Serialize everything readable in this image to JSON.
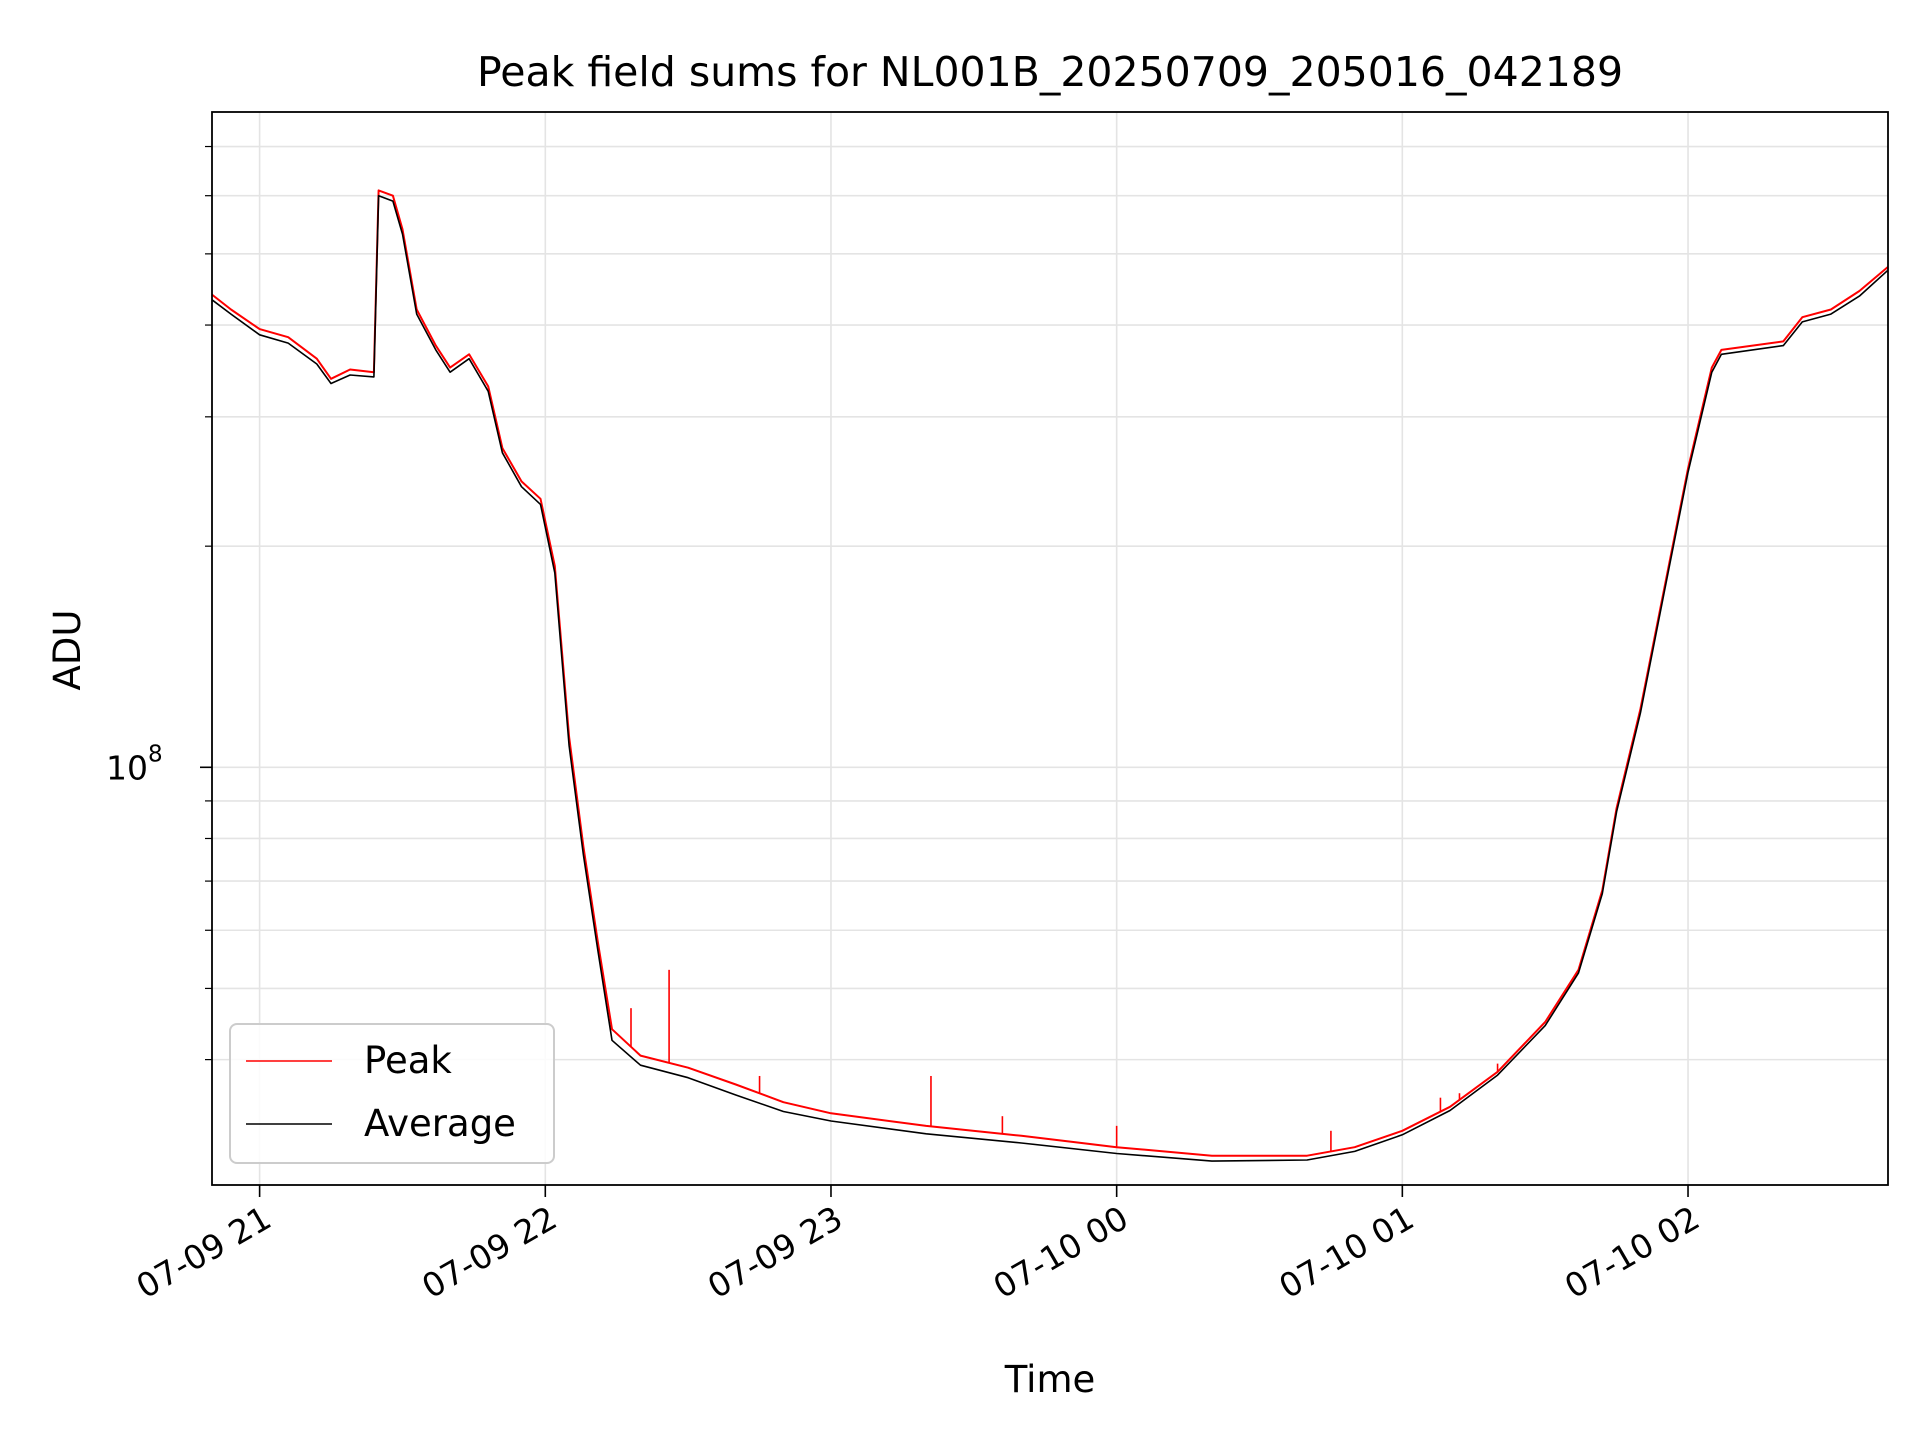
{
  "chart_data": {
    "type": "line",
    "title": "Peak field sums for NL001B_20250709_205016_042189",
    "xlabel": "Time",
    "ylabel": "ADU",
    "y_scale": "log",
    "grid": true,
    "legend_position": "lower-left",
    "xlim": [
      "2025-07-09 20:50",
      "2025-07-10 02:42"
    ],
    "ylim": [
      27000000,
      780000000
    ],
    "x_ticks": [
      {
        "t": "2025-07-09 21:00",
        "label": "07-09 21"
      },
      {
        "t": "2025-07-09 22:00",
        "label": "07-09 22"
      },
      {
        "t": "2025-07-09 23:00",
        "label": "07-09 23"
      },
      {
        "t": "2025-07-10 00:00",
        "label": "07-10 00"
      },
      {
        "t": "2025-07-10 01:00",
        "label": "07-10 01"
      },
      {
        "t": "2025-07-10 02:00",
        "label": "07-10 02"
      }
    ],
    "y_major_ticks": [
      {
        "value": 100000000,
        "base": "10",
        "exp": "8"
      }
    ],
    "y_minor_ticks": [
      40000000,
      50000000,
      60000000,
      70000000,
      80000000,
      90000000,
      200000000,
      300000000,
      400000000,
      500000000,
      600000000,
      700000000
    ],
    "series": [
      {
        "name": "Peak",
        "color": "#ff0000",
        "points": [
          [
            "2025-07-09 20:50",
            440000000
          ],
          [
            "2025-07-09 20:54",
            420000000
          ],
          [
            "2025-07-09 21:00",
            395000000
          ],
          [
            "2025-07-09 21:06",
            385000000
          ],
          [
            "2025-07-09 21:12",
            360000000
          ],
          [
            "2025-07-09 21:15",
            338000000
          ],
          [
            "2025-07-09 21:19",
            348000000
          ],
          [
            "2025-07-09 21:24",
            345000000
          ],
          [
            "2025-07-09 21:25",
            610000000
          ],
          [
            "2025-07-09 21:28",
            600000000
          ],
          [
            "2025-07-09 21:30",
            540000000
          ],
          [
            "2025-07-09 21:33",
            420000000
          ],
          [
            "2025-07-09 21:37",
            375000000
          ],
          [
            "2025-07-09 21:40",
            350000000
          ],
          [
            "2025-07-09 21:44",
            365000000
          ],
          [
            "2025-07-09 21:48",
            330000000
          ],
          [
            "2025-07-09 21:51",
            272000000
          ],
          [
            "2025-07-09 21:55",
            245000000
          ],
          [
            "2025-07-09 21:59",
            232000000
          ],
          [
            "2025-07-09 22:02",
            188000000
          ],
          [
            "2025-07-09 22:05",
            110000000
          ],
          [
            "2025-07-09 22:08",
            78000000
          ],
          [
            "2025-07-09 22:11",
            58000000
          ],
          [
            "2025-07-09 22:14",
            44000000
          ],
          [
            "2025-07-09 22:20",
            40500000
          ],
          [
            "2025-07-09 22:30",
            39000000
          ],
          [
            "2025-07-09 22:40",
            37000000
          ],
          [
            "2025-07-09 22:50",
            35000000
          ],
          [
            "2025-07-09 23:00",
            33800000
          ],
          [
            "2025-07-09 23:20",
            32500000
          ],
          [
            "2025-07-09 23:40",
            31500000
          ],
          [
            "2025-07-10 00:00",
            30400000
          ],
          [
            "2025-07-10 00:20",
            29600000
          ],
          [
            "2025-07-10 00:40",
            29600000
          ],
          [
            "2025-07-10 00:50",
            30400000
          ],
          [
            "2025-07-10 01:00",
            32000000
          ],
          [
            "2025-07-10 01:10",
            34500000
          ],
          [
            "2025-07-10 01:20",
            38500000
          ],
          [
            "2025-07-10 01:30",
            45000000
          ],
          [
            "2025-07-10 01:37",
            53000000
          ],
          [
            "2025-07-10 01:42",
            68000000
          ],
          [
            "2025-07-10 01:45",
            88000000
          ],
          [
            "2025-07-10 01:50",
            120000000
          ],
          [
            "2025-07-10 01:55",
            175000000
          ],
          [
            "2025-07-10 02:00",
            255000000
          ],
          [
            "2025-07-10 02:05",
            350000000
          ],
          [
            "2025-07-10 02:07",
            370000000
          ],
          [
            "2025-07-10 02:20",
            380000000
          ],
          [
            "2025-07-10 02:24",
            410000000
          ],
          [
            "2025-07-10 02:30",
            420000000
          ],
          [
            "2025-07-10 02:36",
            445000000
          ],
          [
            "2025-07-10 02:42",
            480000000
          ]
        ],
        "spikes": [
          [
            "2025-07-09 22:18",
            47000000
          ],
          [
            "2025-07-09 22:26",
            53000000
          ],
          [
            "2025-07-09 22:45",
            38000000
          ],
          [
            "2025-07-09 23:21",
            38000000
          ],
          [
            "2025-07-09 23:36",
            33500000
          ],
          [
            "2025-07-10 00:00",
            32500000
          ],
          [
            "2025-07-10 00:45",
            32000000
          ],
          [
            "2025-07-10 01:08",
            35500000
          ],
          [
            "2025-07-10 01:12",
            36000000
          ],
          [
            "2025-07-10 01:20",
            39500000
          ]
        ]
      },
      {
        "name": "Average",
        "color": "#000000",
        "points": [
          [
            "2025-07-09 20:50",
            433000000
          ],
          [
            "2025-07-09 20:54",
            414000000
          ],
          [
            "2025-07-09 21:00",
            388000000
          ],
          [
            "2025-07-09 21:06",
            378000000
          ],
          [
            "2025-07-09 21:12",
            354000000
          ],
          [
            "2025-07-09 21:15",
            333000000
          ],
          [
            "2025-07-09 21:19",
            342000000
          ],
          [
            "2025-07-09 21:24",
            340000000
          ],
          [
            "2025-07-09 21:25",
            600000000
          ],
          [
            "2025-07-09 21:28",
            590000000
          ],
          [
            "2025-07-09 21:30",
            532000000
          ],
          [
            "2025-07-09 21:33",
            414000000
          ],
          [
            "2025-07-09 21:37",
            370000000
          ],
          [
            "2025-07-09 21:40",
            345000000
          ],
          [
            "2025-07-09 21:44",
            360000000
          ],
          [
            "2025-07-09 21:48",
            325000000
          ],
          [
            "2025-07-09 21:51",
            268000000
          ],
          [
            "2025-07-09 21:55",
            241000000
          ],
          [
            "2025-07-09 21:59",
            228000000
          ],
          [
            "2025-07-09 22:02",
            184000000
          ],
          [
            "2025-07-09 22:05",
            107000000
          ],
          [
            "2025-07-09 22:08",
            76000000
          ],
          [
            "2025-07-09 22:11",
            56500000
          ],
          [
            "2025-07-09 22:14",
            42500000
          ],
          [
            "2025-07-09 22:20",
            39300000
          ],
          [
            "2025-07-09 22:30",
            37800000
          ],
          [
            "2025-07-09 22:40",
            35800000
          ],
          [
            "2025-07-09 22:50",
            34000000
          ],
          [
            "2025-07-09 23:00",
            33000000
          ],
          [
            "2025-07-09 23:20",
            31700000
          ],
          [
            "2025-07-09 23:40",
            30800000
          ],
          [
            "2025-07-10 00:00",
            29800000
          ],
          [
            "2025-07-10 00:20",
            29100000
          ],
          [
            "2025-07-10 00:40",
            29200000
          ],
          [
            "2025-07-10 00:50",
            30000000
          ],
          [
            "2025-07-10 01:00",
            31600000
          ],
          [
            "2025-07-10 01:10",
            34100000
          ],
          [
            "2025-07-10 01:20",
            38100000
          ],
          [
            "2025-07-10 01:30",
            44500000
          ],
          [
            "2025-07-10 01:37",
            52500000
          ],
          [
            "2025-07-10 01:42",
            67300000
          ],
          [
            "2025-07-10 01:45",
            87000000
          ],
          [
            "2025-07-10 01:50",
            118500000
          ],
          [
            "2025-07-10 01:55",
            173000000
          ],
          [
            "2025-07-10 02:00",
            252000000
          ],
          [
            "2025-07-10 02:05",
            345000000
          ],
          [
            "2025-07-10 02:07",
            365000000
          ],
          [
            "2025-07-10 02:20",
            375000000
          ],
          [
            "2025-07-10 02:24",
            404000000
          ],
          [
            "2025-07-10 02:30",
            414000000
          ],
          [
            "2025-07-10 02:36",
            438000000
          ],
          [
            "2025-07-10 02:42",
            475000000
          ]
        ]
      }
    ]
  }
}
